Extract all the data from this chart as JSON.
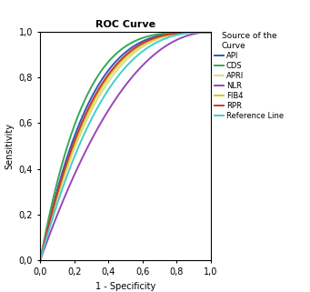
{
  "title": "ROC Curve",
  "xlabel": "1 - Specificity",
  "ylabel": "Sensitivity",
  "xlim": [
    0.0,
    1.0
  ],
  "ylim": [
    0.0,
    1.0
  ],
  "xticks": [
    0.0,
    0.2,
    0.4,
    0.6,
    0.8,
    1.0
  ],
  "yticks": [
    0.0,
    0.2,
    0.4,
    0.6,
    0.8,
    1.0
  ],
  "legend_title": "Source of the\nCurve",
  "curves": [
    {
      "label": "API",
      "color": "#3355bb",
      "k": 3.5
    },
    {
      "label": "CDS",
      "color": "#33aa55",
      "k": 4.0
    },
    {
      "label": "APRI",
      "color": "#dddd88",
      "k": 3.0
    },
    {
      "label": "NLR",
      "color": "#9944bb",
      "k": 2.1
    },
    {
      "label": "FIB4",
      "color": "#cccc22",
      "k": 3.2
    },
    {
      "label": "RPR",
      "color": "#cc3333",
      "k": 3.3
    },
    {
      "label": "Reference Line",
      "color": "#44cccc",
      "k": 2.7
    }
  ],
  "background_color": "#ffffff",
  "title_fontsize": 8,
  "axis_fontsize": 7,
  "tick_fontsize": 7,
  "legend_fontsize": 6,
  "legend_title_fontsize": 6.5
}
